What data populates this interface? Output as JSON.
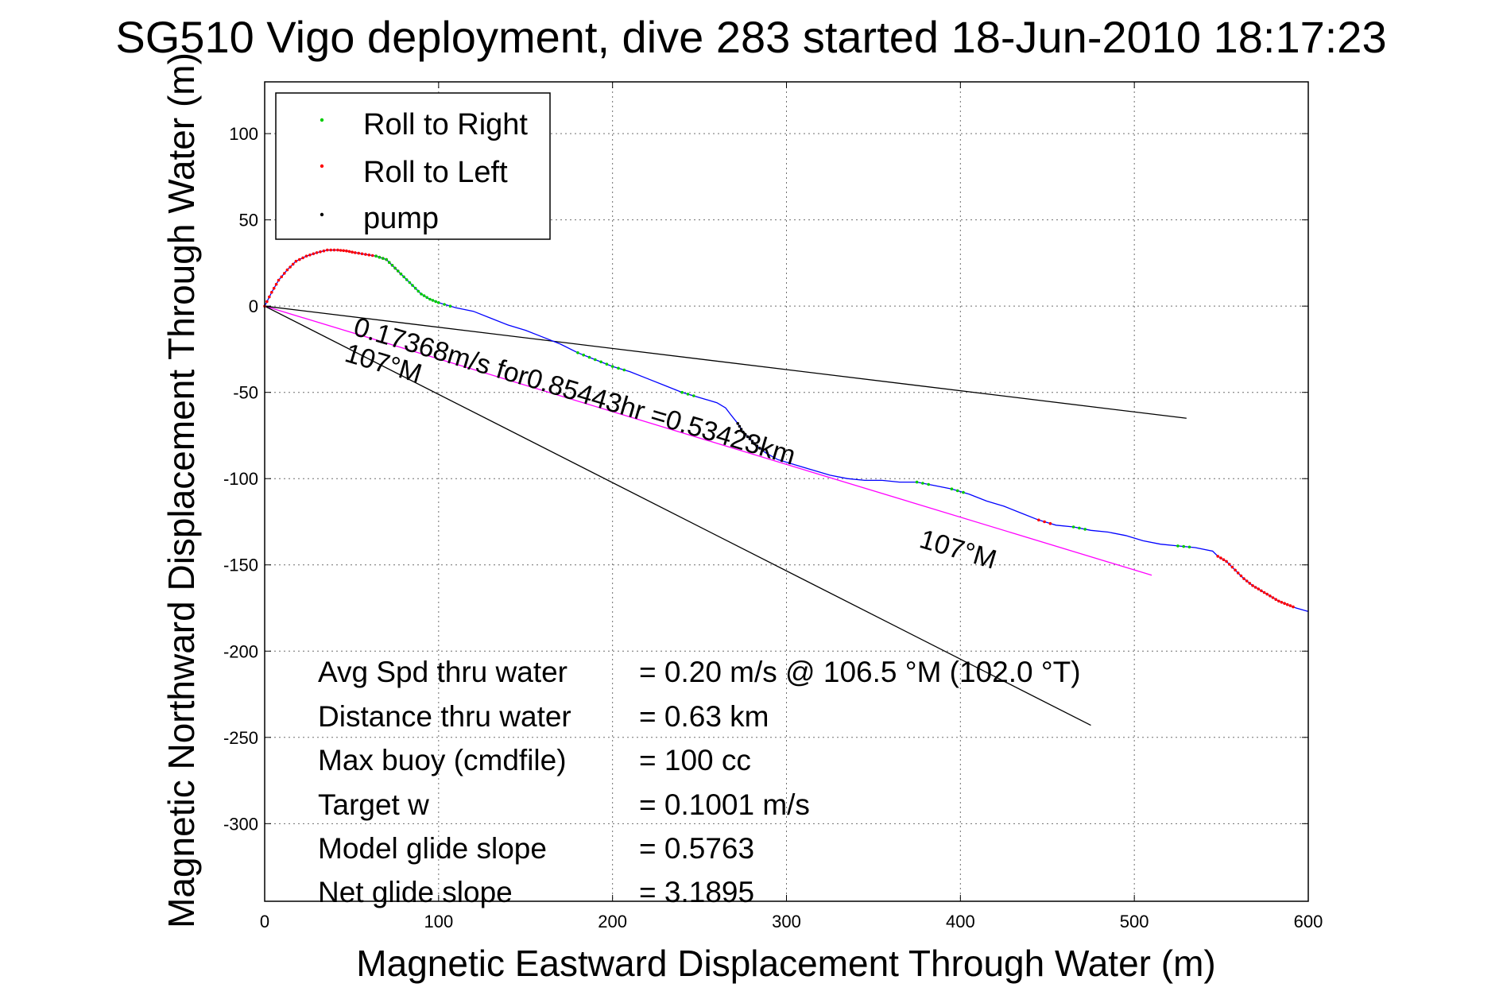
{
  "chart_data": {
    "type": "line",
    "title": "SG510 Vigo deployment, dive 283 started 18-Jun-2010 18:17:23",
    "xlabel": "Magnetic Eastward Displacement Through Water (m)",
    "ylabel": "Magnetic Northward Displacement Through Water (m)",
    "xlim": [
      0,
      600
    ],
    "ylim": [
      -345,
      130
    ],
    "xticks": [
      "0",
      "100",
      "200",
      "300",
      "400",
      "500",
      "600"
    ],
    "yticks": [
      "-300",
      "-250",
      "-200",
      "-150",
      "-100",
      "-50",
      "0",
      "50",
      "100"
    ],
    "xtick_values": [
      0,
      100,
      200,
      300,
      400,
      500,
      600
    ],
    "ytick_values": [
      -300,
      -250,
      -200,
      -150,
      -100,
      -50,
      0,
      50,
      100
    ],
    "grid": true,
    "legend_position": "top-left",
    "legend": [
      {
        "label": "Roll to Right",
        "color": "#00cc00"
      },
      {
        "label": "Roll to Left",
        "color": "#ff0000"
      },
      {
        "label": "pump",
        "color": "#000000"
      }
    ],
    "track": {
      "color": "#0000ff",
      "x": [
        0,
        4,
        8,
        13,
        18,
        24,
        30,
        36,
        42,
        47,
        52,
        58,
        64,
        70,
        75,
        80,
        85,
        90,
        95,
        100,
        110,
        120,
        130,
        140,
        150,
        160,
        170,
        180,
        190,
        200,
        210,
        220,
        230,
        240,
        250,
        260,
        265,
        268,
        272,
        275,
        279,
        283,
        288,
        295,
        305,
        315,
        325,
        335,
        345,
        355,
        365,
        375,
        385,
        395,
        405,
        415,
        425,
        435,
        445,
        455,
        465,
        475,
        485,
        495,
        505,
        515,
        525,
        535,
        545,
        548,
        553,
        558,
        563,
        568,
        573,
        578,
        583,
        588,
        593,
        600
      ],
      "y": [
        0,
        8,
        15,
        21,
        26,
        29,
        31,
        32.5,
        32.5,
        32,
        31,
        30,
        29,
        27,
        22,
        17,
        12,
        7,
        4,
        2,
        -1,
        -3,
        -7,
        -11,
        -14,
        -18,
        -22,
        -27,
        -31,
        -35,
        -38,
        -42,
        -46,
        -50,
        -53,
        -56,
        -59,
        -63,
        -68,
        -73,
        -77,
        -81,
        -85,
        -89,
        -92,
        -95,
        -98,
        -100,
        -101,
        -101,
        -102,
        -102,
        -104,
        -106,
        -109,
        -113,
        -116,
        -120,
        -124,
        -127,
        -128,
        -130,
        -131,
        -133,
        -136,
        -138,
        -139,
        -140,
        -142,
        -145,
        -148,
        -153,
        -158,
        -162,
        -165,
        -168,
        -171,
        -173,
        -175,
        -177
      ],
      "segments": [
        {
          "series": "Roll to Left",
          "from": 0,
          "to": 15
        },
        {
          "series": "Roll to Right",
          "from": 12,
          "to": 20
        },
        {
          "series": "Roll to Right",
          "from": 27,
          "to": 30
        },
        {
          "series": "Roll to Right",
          "from": 33,
          "to": 34
        },
        {
          "series": "pump",
          "from": 38,
          "to": 42
        },
        {
          "series": "Roll to Right",
          "from": 51,
          "to": 52
        },
        {
          "series": "Roll to Right",
          "from": 53,
          "to": 54
        },
        {
          "series": "Roll to Left",
          "from": 58,
          "to": 59
        },
        {
          "series": "Roll to Right",
          "from": 60,
          "to": 61
        },
        {
          "series": "Roll to Right",
          "from": 66,
          "to": 67
        },
        {
          "series": "Roll to Left",
          "from": 69,
          "to": 78
        }
      ]
    },
    "reference_lines": [
      {
        "color": "#ff00ff",
        "x": [
          0,
          510
        ],
        "y": [
          0,
          -156
        ]
      },
      {
        "color": "#000000",
        "x": [
          0,
          530
        ],
        "y": [
          0,
          -65
        ]
      },
      {
        "color": "#000000",
        "x": [
          0,
          475
        ],
        "y": [
          0,
          -243
        ]
      }
    ],
    "annotations": {
      "speed_label": "0.17368m/s for0.85443hr =0.53423km",
      "heading_label_a": "107°M",
      "heading_label_b": "107°M"
    },
    "stats": [
      {
        "label": "Avg Spd thru water",
        "value": "=  0.20 m/s @ 106.5 °M (102.0 °T)"
      },
      {
        "label": "Distance thru water",
        "value": "=  0.63 km"
      },
      {
        "label": "Max buoy (cmdfile)",
        "value": "= 100 cc"
      },
      {
        "label": "Target w",
        "value": "= 0.1001 m/s"
      },
      {
        "label": "Model glide slope",
        "value": "= 0.5763"
      },
      {
        "label": "Net glide slope",
        "value": "= 3.1895"
      }
    ]
  }
}
